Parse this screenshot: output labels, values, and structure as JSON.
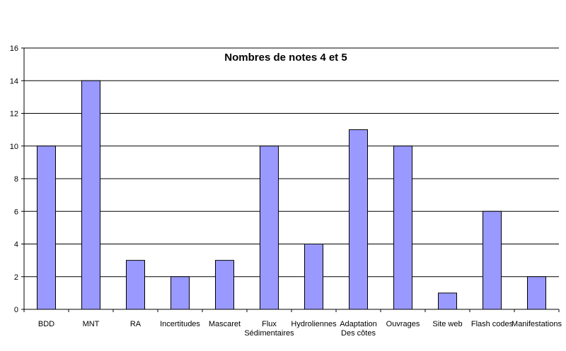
{
  "chart_data": {
    "type": "bar",
    "title": "Nombres de notes 4 et 5",
    "categories": [
      [
        "BDD"
      ],
      [
        "MNT"
      ],
      [
        "RA"
      ],
      [
        "Incertitudes"
      ],
      [
        "Mascaret"
      ],
      [
        "Flux",
        "Sédimentaires"
      ],
      [
        "Hydroliennes"
      ],
      [
        "Adaptation",
        "Des côtes"
      ],
      [
        "Ouvrages"
      ],
      [
        "Site web"
      ],
      [
        "Flash codes"
      ],
      [
        "Manifestations"
      ]
    ],
    "values": [
      10,
      14,
      3,
      2,
      3,
      10,
      4,
      11,
      10,
      1,
      6,
      2
    ],
    "ylim": [
      0,
      16
    ],
    "yticks": [
      0,
      2,
      4,
      6,
      8,
      10,
      12,
      14,
      16
    ],
    "grid": true,
    "legend": "none",
    "colors": {
      "bar_fill": "#9999ff",
      "bar_stroke": "#000000",
      "grid": "#000000",
      "axis": "#000000"
    }
  }
}
